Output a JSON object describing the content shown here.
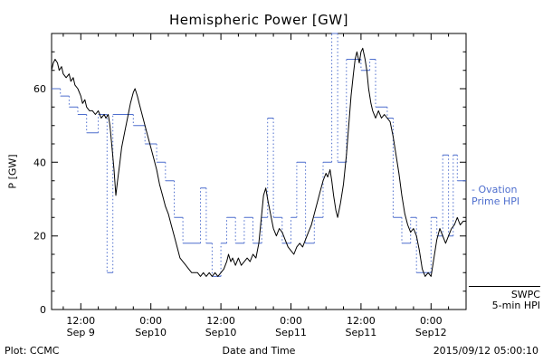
{
  "title": "Hemispheric Power [GW]",
  "axes": {
    "ylabel": "P [GW]",
    "xlabel": "Date and Time"
  },
  "footer": {
    "left": "Plot: CCMC",
    "right": "2015/09/12 05:00:10"
  },
  "colors": {
    "ovation_blue": "#4f6fce",
    "swpc_black": "#000000"
  },
  "legend": {
    "ovation": {
      "line1": "- Ovation",
      "line2": "Prime HPI"
    },
    "swpc": {
      "line1": "SWPC",
      "line2": "5-min HPI"
    }
  },
  "chart_data": {
    "type": "line",
    "title": "Hemispheric Power [GW]",
    "xlabel": "Date and Time",
    "ylabel": "P [GW]",
    "x_unit": "hours from 2015-09-09 00:00",
    "xlim": [
      7,
      78
    ],
    "ylim": [
      0,
      75
    ],
    "grid": false,
    "legend_position": "right-outside",
    "yticks": [
      0,
      20,
      40,
      60
    ],
    "xticks": [
      {
        "hour": 12,
        "time": "12:00",
        "date": "Sep 9"
      },
      {
        "hour": 24,
        "time": "0:00",
        "date": "Sep10"
      },
      {
        "hour": 36,
        "time": "12:00",
        "date": "Sep10"
      },
      {
        "hour": 48,
        "time": "0:00",
        "date": "Sep11"
      },
      {
        "hour": 60,
        "time": "12:00",
        "date": "Sep11"
      },
      {
        "hour": 72,
        "time": "0:00",
        "date": "Sep12"
      }
    ],
    "series": [
      {
        "name": "Ovation Prime HPI",
        "color": "#4f6fce",
        "line_style": "dotted-step",
        "step": true,
        "x": [
          7,
          8.5,
          10,
          11.5,
          13,
          15,
          16.5,
          17.5,
          21,
          23,
          25,
          26.5,
          28,
          29.5,
          32.5,
          33.5,
          34.5,
          36,
          37,
          38.5,
          40,
          41.5,
          43,
          44,
          45,
          46.5,
          48,
          49,
          50.5,
          52,
          53.5,
          55,
          56,
          57.5,
          60,
          61.5,
          62.5,
          64.5,
          65.5,
          67,
          68.5,
          69.5,
          72,
          73,
          74,
          75,
          75.8,
          76.5,
          78
        ],
        "y": [
          60,
          58,
          55,
          53,
          48,
          53,
          10,
          53,
          50,
          45,
          40,
          35,
          25,
          18,
          33,
          18,
          9,
          18,
          25,
          18,
          25,
          18,
          25,
          52,
          25,
          18,
          25,
          40,
          18,
          25,
          40,
          75,
          40,
          68,
          65,
          68,
          55,
          52,
          25,
          18,
          25,
          10,
          25,
          20,
          42,
          20,
          42,
          35,
          35
        ]
      },
      {
        "name": "SWPC 5-min HPI",
        "color": "#000000",
        "line_style": "solid",
        "step": false,
        "x": [
          7,
          7.3,
          7.6,
          8,
          8.3,
          8.7,
          9,
          9.5,
          10,
          10.3,
          10.7,
          11,
          11.5,
          12,
          12.3,
          12.7,
          13,
          13.5,
          14,
          14.5,
          15,
          15.5,
          16,
          16.3,
          16.7,
          17,
          17.3,
          17.7,
          18,
          18.3,
          18.7,
          19,
          19.5,
          20,
          20.5,
          21,
          21.3,
          21.7,
          22,
          22.5,
          23,
          23.5,
          24,
          24.5,
          25,
          25.5,
          26,
          26.5,
          27,
          27.5,
          28,
          28.5,
          29,
          29.5,
          30,
          30.5,
          31,
          31.5,
          32,
          32.5,
          33,
          33.5,
          34,
          34.5,
          35,
          35.5,
          36,
          36.5,
          37,
          37.3,
          37.7,
          38,
          38.5,
          39,
          39.5,
          40,
          40.5,
          41,
          41.5,
          42,
          42.5,
          43,
          43.3,
          43.7,
          44,
          44.5,
          45,
          45.5,
          46,
          46.5,
          47,
          47.5,
          48,
          48.5,
          49,
          49.5,
          50,
          50.5,
          51,
          51.5,
          52,
          52.5,
          53,
          53.5,
          54,
          54.3,
          54.7,
          55,
          55.3,
          55.7,
          56,
          56.5,
          57,
          57.5,
          58,
          58.3,
          58.7,
          59,
          59.3,
          59.7,
          60,
          60.3,
          60.7,
          61,
          61.3,
          61.7,
          62,
          62.5,
          63,
          63.5,
          64,
          64.5,
          65,
          65.5,
          66,
          66.5,
          67,
          67.5,
          68,
          68.5,
          69,
          69.5,
          70,
          70.5,
          71,
          71.5,
          72,
          72.5,
          73,
          73.5,
          74,
          74.5,
          75,
          75.5,
          76,
          76.5,
          77,
          77.5,
          78
        ],
        "y": [
          65,
          67,
          68,
          67,
          65,
          66,
          64,
          63,
          64,
          62,
          63,
          61,
          60,
          58,
          56,
          57,
          55,
          54,
          54,
          53,
          54,
          52,
          53,
          52,
          53,
          50,
          45,
          38,
          31,
          35,
          40,
          44,
          48,
          52,
          56,
          59,
          60,
          58,
          56,
          53,
          50,
          47,
          44,
          41,
          38,
          34,
          31,
          28,
          26,
          23,
          20,
          17,
          14,
          13,
          12,
          11,
          10,
          10,
          10,
          9,
          10,
          9,
          10,
          9,
          10,
          9,
          10,
          11,
          13,
          15,
          13,
          14,
          12,
          14,
          12,
          13,
          14,
          13,
          15,
          14,
          18,
          26,
          31,
          33,
          30,
          26,
          22,
          20,
          22,
          21,
          19,
          17,
          16,
          15,
          17,
          18,
          17,
          19,
          21,
          23,
          26,
          29,
          32,
          35,
          37,
          36,
          38,
          35,
          31,
          27,
          25,
          29,
          34,
          42,
          52,
          58,
          64,
          68,
          70,
          67,
          70,
          71,
          68,
          65,
          60,
          56,
          54,
          52,
          54,
          52,
          53,
          52,
          51,
          47,
          42,
          37,
          31,
          26,
          23,
          21,
          22,
          20,
          16,
          11,
          9,
          10,
          9,
          14,
          19,
          22,
          20,
          18,
          20,
          22,
          23,
          25,
          23,
          24,
          24
        ]
      }
    ]
  }
}
